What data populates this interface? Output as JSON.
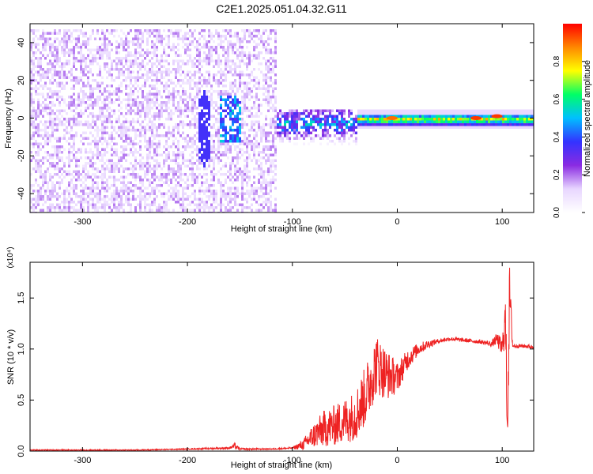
{
  "title": "C2E1.2025.051.04.32.G11",
  "chart_data": [
    {
      "type": "heatmap",
      "xlabel": "Height of straight line (km)",
      "ylabel": "Frequency (Hz)",
      "xlim": [
        -350,
        130
      ],
      "ylim": [
        -50,
        50
      ],
      "xticks": [
        -300,
        -200,
        -100,
        0,
        100
      ],
      "yticks": [
        -40,
        -20,
        0,
        20,
        40
      ],
      "colorbar": {
        "label": "Normalized spectral amplitude",
        "range": [
          0,
          1
        ],
        "ticks": [
          "0.0",
          "0.2",
          "0.4",
          "0.6",
          "0.8"
        ],
        "colors": [
          "#ffffff",
          "#e8d6ff",
          "#8a2be2",
          "#3333ff",
          "#00bfff",
          "#00ff66",
          "#ffff00",
          "#ff8800",
          "#ff0000"
        ]
      },
      "regions": [
        {
          "x_range": [
            -350,
            -115
          ],
          "freq_range": [
            -50,
            48
          ],
          "amplitude": 0.15,
          "pattern": "broadband-speckle"
        },
        {
          "x_range": [
            -115,
            -40
          ],
          "freq_range": [
            -15,
            6
          ],
          "amplitude": 0.35,
          "pattern": "clustered-near-zero"
        },
        {
          "x_range": [
            -40,
            130
          ],
          "freq_range": [
            -3,
            3
          ],
          "amplitude": 0.85,
          "pattern": "narrow-band-at-0Hz"
        }
      ],
      "features": [
        {
          "x": 75,
          "freq": 0,
          "amplitude": 0.95
        },
        {
          "x": 95,
          "freq": 1,
          "amplitude": 0.95
        },
        {
          "x": -5,
          "freq": 0,
          "amplitude": 0.9
        }
      ]
    },
    {
      "type": "line",
      "xlabel": "Height of straight line (km)",
      "ylabel": "SNR (10 * v/v)",
      "y_multiplier": "(x10⁴)",
      "xlim": [
        -350,
        130
      ],
      "ylim": [
        0,
        1.85
      ],
      "xticks": [
        -300,
        -200,
        -100,
        0,
        100
      ],
      "yticks": [
        "0.0",
        "0.5",
        "1.0",
        "1.5"
      ],
      "series": [
        {
          "color": "#ee2222",
          "x": [
            -350,
            -300,
            -250,
            -200,
            -160,
            -155,
            -150,
            -120,
            -100,
            -90,
            -80,
            -70,
            -60,
            -50,
            -40,
            -30,
            -20,
            -10,
            0,
            10,
            20,
            30,
            40,
            50,
            60,
            70,
            80,
            90,
            95,
            100,
            103,
            105,
            107,
            110,
            120,
            130
          ],
          "y": [
            0.01,
            0.01,
            0.01,
            0.02,
            0.03,
            0.05,
            0.02,
            0.02,
            0.03,
            0.06,
            0.15,
            0.22,
            0.25,
            0.3,
            0.35,
            0.55,
            0.85,
            0.75,
            0.72,
            0.9,
            1.0,
            1.05,
            1.08,
            1.1,
            1.09,
            1.08,
            1.07,
            1.05,
            1.1,
            1.0,
            1.3,
            0.3,
            1.55,
            1.03,
            1.03,
            1.02
          ],
          "noise": [
            0.005,
            0.005,
            0.005,
            0.005,
            0.01,
            0.03,
            0.01,
            0.005,
            0.01,
            0.05,
            0.12,
            0.18,
            0.2,
            0.22,
            0.25,
            0.3,
            0.3,
            0.25,
            0.15,
            0.1,
            0.06,
            0.04,
            0.02,
            0.02,
            0.02,
            0.02,
            0.02,
            0.03,
            0.06,
            0.1,
            0.25,
            0.35,
            0.3,
            0.02,
            0.02,
            0.02
          ]
        }
      ]
    }
  ]
}
